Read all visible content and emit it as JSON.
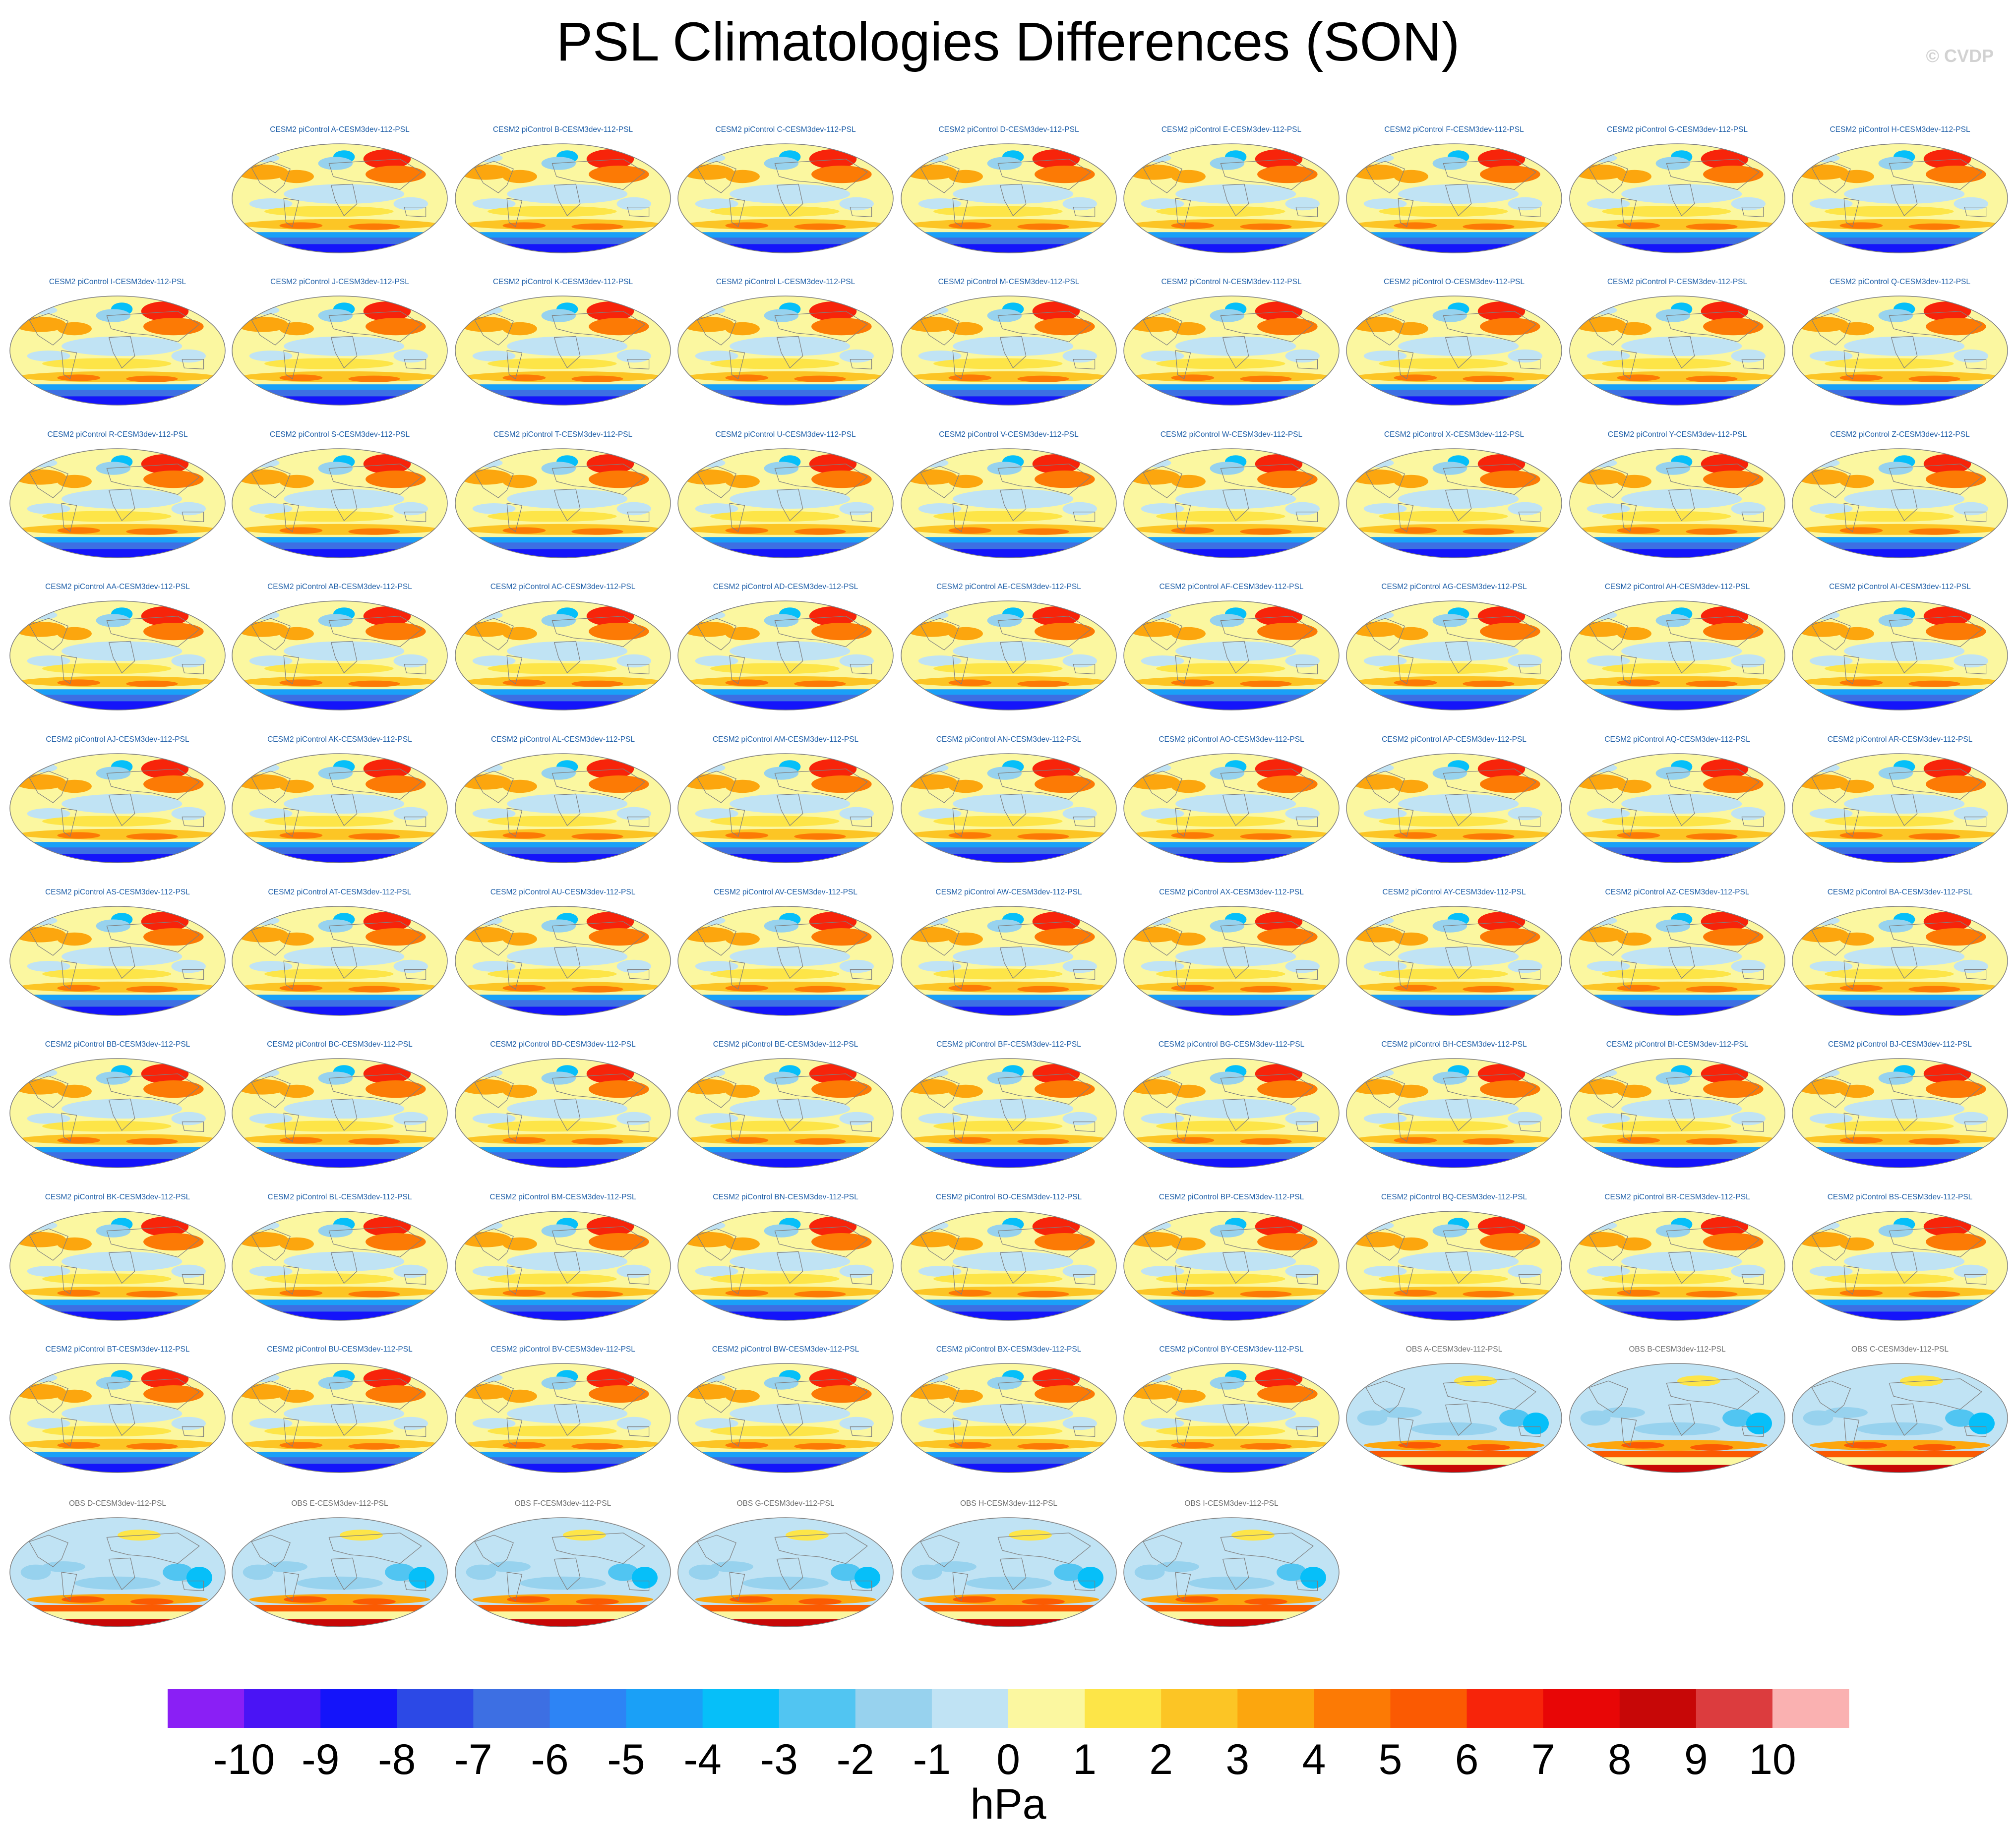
{
  "title": "PSL Climatologies Differences (SON)",
  "watermark": "© CVDP",
  "colors": {
    "model_title": "#1f5fa8",
    "obs_title": "#6e6e6e",
    "map_outline": "#7f7f7f"
  },
  "chart_data": {
    "type": "heatmap",
    "projection": "robinson",
    "season": "SON",
    "variable": "PSL",
    "colorbar": {
      "label": "hPa",
      "tick_labels": [
        "-10",
        "-9",
        "-8",
        "-7",
        "-6",
        "-5",
        "-4",
        "-3",
        "-2",
        "-1",
        "0",
        "1",
        "2",
        "3",
        "4",
        "5",
        "6",
        "7",
        "8",
        "9",
        "10"
      ],
      "colors": [
        "#8a1ff5",
        "#4a14f5",
        "#1414fa",
        "#2c49e6",
        "#3d6fe3",
        "#2d84f5",
        "#1aa0f7",
        "#06bff9",
        "#51c5f2",
        "#97d2ee",
        "#c0e3f4",
        "#fbf7a0",
        "#fde548",
        "#fcc525",
        "#fca60e",
        "#fc7a05",
        "#fb5a02",
        "#f7240a",
        "#e80606",
        "#c70707",
        "#dc3c3e",
        "#fab1b1"
      ]
    },
    "panels": [
      {
        "title": "CESM2 piControl A-CESM3dev-112-PSL",
        "type": "model"
      },
      {
        "title": "CESM2 piControl B-CESM3dev-112-PSL",
        "type": "model"
      },
      {
        "title": "CESM2 piControl C-CESM3dev-112-PSL",
        "type": "model"
      },
      {
        "title": "CESM2 piControl D-CESM3dev-112-PSL",
        "type": "model"
      },
      {
        "title": "CESM2 piControl E-CESM3dev-112-PSL",
        "type": "model"
      },
      {
        "title": "CESM2 piControl F-CESM3dev-112-PSL",
        "type": "model"
      },
      {
        "title": "CESM2 piControl G-CESM3dev-112-PSL",
        "type": "model"
      },
      {
        "title": "CESM2 piControl H-CESM3dev-112-PSL",
        "type": "model"
      },
      {
        "title": "CESM2 piControl I-CESM3dev-112-PSL",
        "type": "model"
      },
      {
        "title": "CESM2 piControl J-CESM3dev-112-PSL",
        "type": "model"
      },
      {
        "title": "CESM2 piControl K-CESM3dev-112-PSL",
        "type": "model"
      },
      {
        "title": "CESM2 piControl L-CESM3dev-112-PSL",
        "type": "model"
      },
      {
        "title": "CESM2 piControl M-CESM3dev-112-PSL",
        "type": "model"
      },
      {
        "title": "CESM2 piControl N-CESM3dev-112-PSL",
        "type": "model"
      },
      {
        "title": "CESM2 piControl O-CESM3dev-112-PSL",
        "type": "model"
      },
      {
        "title": "CESM2 piControl P-CESM3dev-112-PSL",
        "type": "model"
      },
      {
        "title": "CESM2 piControl Q-CESM3dev-112-PSL",
        "type": "model"
      },
      {
        "title": "CESM2 piControl R-CESM3dev-112-PSL",
        "type": "model"
      },
      {
        "title": "CESM2 piControl S-CESM3dev-112-PSL",
        "type": "model"
      },
      {
        "title": "CESM2 piControl T-CESM3dev-112-PSL",
        "type": "model"
      },
      {
        "title": "CESM2 piControl U-CESM3dev-112-PSL",
        "type": "model"
      },
      {
        "title": "CESM2 piControl V-CESM3dev-112-PSL",
        "type": "model"
      },
      {
        "title": "CESM2 piControl W-CESM3dev-112-PSL",
        "type": "model"
      },
      {
        "title": "CESM2 piControl X-CESM3dev-112-PSL",
        "type": "model"
      },
      {
        "title": "CESM2 piControl Y-CESM3dev-112-PSL",
        "type": "model"
      },
      {
        "title": "CESM2 piControl Z-CESM3dev-112-PSL",
        "type": "model"
      },
      {
        "title": "CESM2 piControl AA-CESM3dev-112-PSL",
        "type": "model"
      },
      {
        "title": "CESM2 piControl AB-CESM3dev-112-PSL",
        "type": "model"
      },
      {
        "title": "CESM2 piControl AC-CESM3dev-112-PSL",
        "type": "model"
      },
      {
        "title": "CESM2 piControl AD-CESM3dev-112-PSL",
        "type": "model"
      },
      {
        "title": "CESM2 piControl AE-CESM3dev-112-PSL",
        "type": "model"
      },
      {
        "title": "CESM2 piControl AF-CESM3dev-112-PSL",
        "type": "model"
      },
      {
        "title": "CESM2 piControl AG-CESM3dev-112-PSL",
        "type": "model"
      },
      {
        "title": "CESM2 piControl AH-CESM3dev-112-PSL",
        "type": "model"
      },
      {
        "title": "CESM2 piControl AI-CESM3dev-112-PSL",
        "type": "model"
      },
      {
        "title": "CESM2 piControl AJ-CESM3dev-112-PSL",
        "type": "model"
      },
      {
        "title": "CESM2 piControl AK-CESM3dev-112-PSL",
        "type": "model"
      },
      {
        "title": "CESM2 piControl AL-CESM3dev-112-PSL",
        "type": "model"
      },
      {
        "title": "CESM2 piControl AM-CESM3dev-112-PSL",
        "type": "model"
      },
      {
        "title": "CESM2 piControl AN-CESM3dev-112-PSL",
        "type": "model"
      },
      {
        "title": "CESM2 piControl AO-CESM3dev-112-PSL",
        "type": "model"
      },
      {
        "title": "CESM2 piControl AP-CESM3dev-112-PSL",
        "type": "model"
      },
      {
        "title": "CESM2 piControl AQ-CESM3dev-112-PSL",
        "type": "model"
      },
      {
        "title": "CESM2 piControl AR-CESM3dev-112-PSL",
        "type": "model"
      },
      {
        "title": "CESM2 piControl AS-CESM3dev-112-PSL",
        "type": "model"
      },
      {
        "title": "CESM2 piControl AT-CESM3dev-112-PSL",
        "type": "model"
      },
      {
        "title": "CESM2 piControl AU-CESM3dev-112-PSL",
        "type": "model"
      },
      {
        "title": "CESM2 piControl AV-CESM3dev-112-PSL",
        "type": "model"
      },
      {
        "title": "CESM2 piControl AW-CESM3dev-112-PSL",
        "type": "model"
      },
      {
        "title": "CESM2 piControl AX-CESM3dev-112-PSL",
        "type": "model"
      },
      {
        "title": "CESM2 piControl AY-CESM3dev-112-PSL",
        "type": "model"
      },
      {
        "title": "CESM2 piControl AZ-CESM3dev-112-PSL",
        "type": "model"
      },
      {
        "title": "CESM2 piControl BA-CESM3dev-112-PSL",
        "type": "model"
      },
      {
        "title": "CESM2 piControl BB-CESM3dev-112-PSL",
        "type": "model"
      },
      {
        "title": "CESM2 piControl BC-CESM3dev-112-PSL",
        "type": "model"
      },
      {
        "title": "CESM2 piControl BD-CESM3dev-112-PSL",
        "type": "model"
      },
      {
        "title": "CESM2 piControl BE-CESM3dev-112-PSL",
        "type": "model"
      },
      {
        "title": "CESM2 piControl BF-CESM3dev-112-PSL",
        "type": "model"
      },
      {
        "title": "CESM2 piControl BG-CESM3dev-112-PSL",
        "type": "model"
      },
      {
        "title": "CESM2 piControl BH-CESM3dev-112-PSL",
        "type": "model"
      },
      {
        "title": "CESM2 piControl BI-CESM3dev-112-PSL",
        "type": "model"
      },
      {
        "title": "CESM2 piControl BJ-CESM3dev-112-PSL",
        "type": "model"
      },
      {
        "title": "CESM2 piControl BK-CESM3dev-112-PSL",
        "type": "model"
      },
      {
        "title": "CESM2 piControl BL-CESM3dev-112-PSL",
        "type": "model"
      },
      {
        "title": "CESM2 piControl BM-CESM3dev-112-PSL",
        "type": "model"
      },
      {
        "title": "CESM2 piControl BN-CESM3dev-112-PSL",
        "type": "model"
      },
      {
        "title": "CESM2 piControl BO-CESM3dev-112-PSL",
        "type": "model"
      },
      {
        "title": "CESM2 piControl BP-CESM3dev-112-PSL",
        "type": "model"
      },
      {
        "title": "CESM2 piControl BQ-CESM3dev-112-PSL",
        "type": "model"
      },
      {
        "title": "CESM2 piControl BR-CESM3dev-112-PSL",
        "type": "model"
      },
      {
        "title": "CESM2 piControl BS-CESM3dev-112-PSL",
        "type": "model"
      },
      {
        "title": "CESM2 piControl BT-CESM3dev-112-PSL",
        "type": "model"
      },
      {
        "title": "CESM2 piControl BU-CESM3dev-112-PSL",
        "type": "model"
      },
      {
        "title": "CESM2 piControl BV-CESM3dev-112-PSL",
        "type": "model"
      },
      {
        "title": "CESM2 piControl BW-CESM3dev-112-PSL",
        "type": "model"
      },
      {
        "title": "CESM2 piControl BX-CESM3dev-112-PSL",
        "type": "model"
      },
      {
        "title": "CESM2 piControl BY-CESM3dev-112-PSL",
        "type": "model"
      },
      {
        "title": "OBS A-CESM3dev-112-PSL",
        "type": "obs"
      },
      {
        "title": "OBS B-CESM3dev-112-PSL",
        "type": "obs"
      },
      {
        "title": "OBS C-CESM3dev-112-PSL",
        "type": "obs"
      },
      {
        "title": "OBS D-CESM3dev-112-PSL",
        "type": "obs"
      },
      {
        "title": "OBS E-CESM3dev-112-PSL",
        "type": "obs"
      },
      {
        "title": "OBS F-CESM3dev-112-PSL",
        "type": "obs"
      },
      {
        "title": "OBS G-CESM3dev-112-PSL",
        "type": "obs"
      },
      {
        "title": "OBS H-CESM3dev-112-PSL",
        "type": "obs"
      },
      {
        "title": "OBS I-CESM3dev-112-PSL",
        "type": "obs"
      }
    ]
  }
}
